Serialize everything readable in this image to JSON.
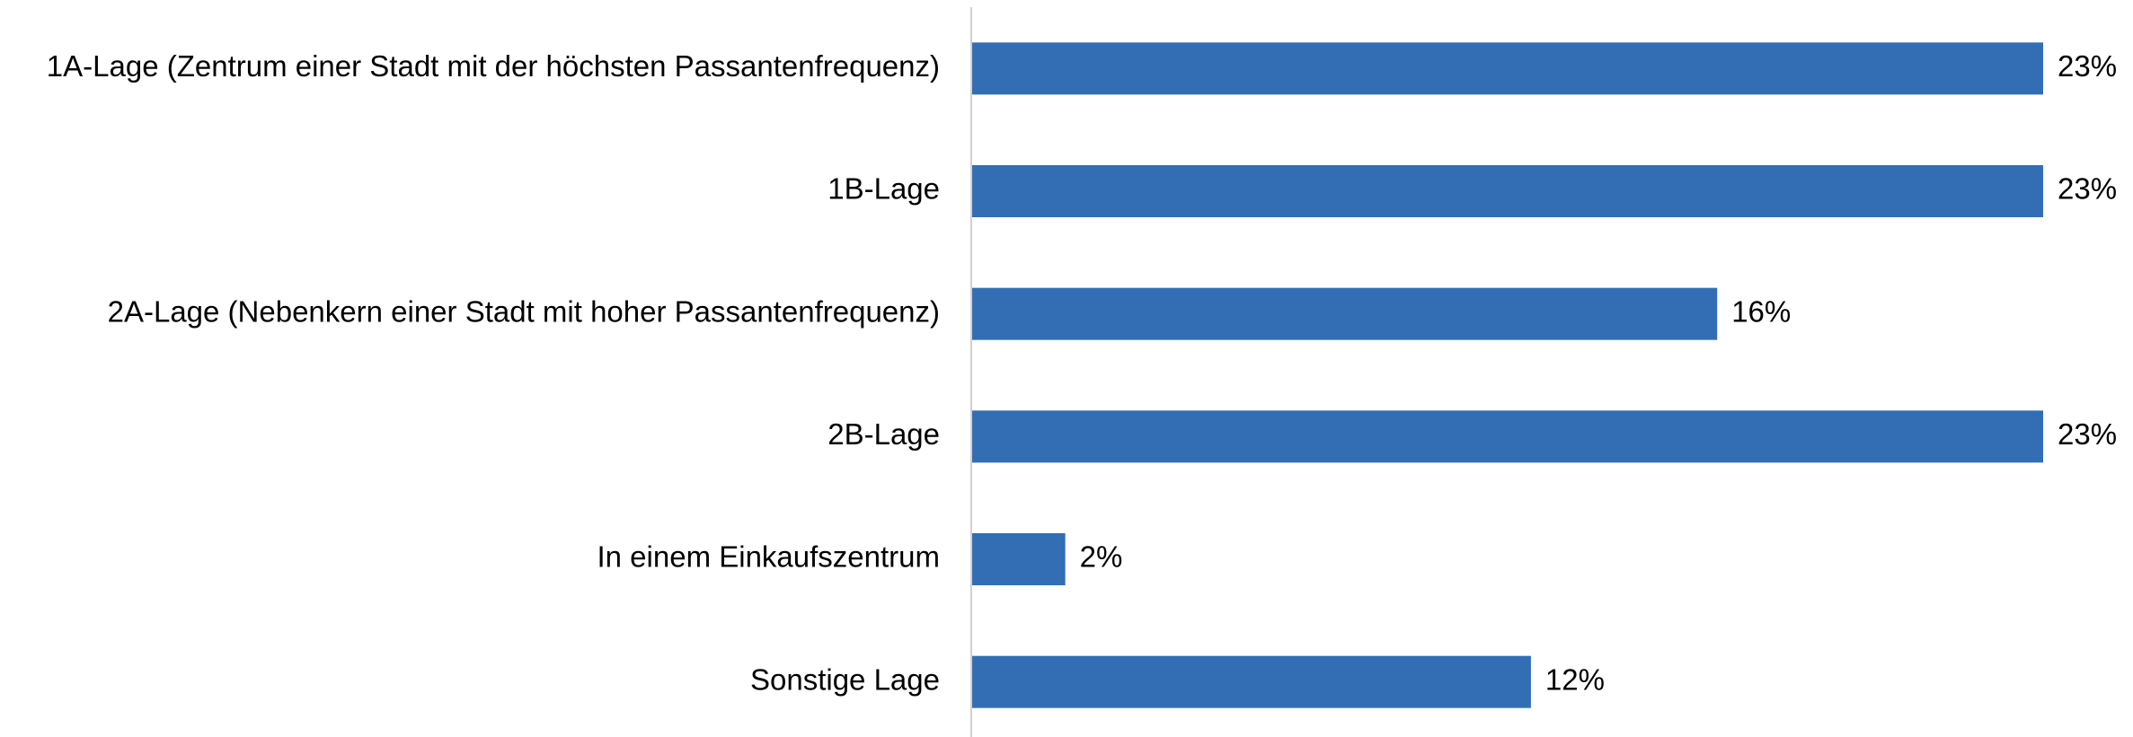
{
  "chart_data": {
    "type": "bar",
    "orientation": "horizontal",
    "categories": [
      "1A-Lage (Zentrum einer Stadt mit der höchsten Passantenfrequenz)",
      "1B-Lage",
      "2A-Lage (Nebenkern einer Stadt mit hoher Passantenfrequenz)",
      "2B-Lage",
      "In einem Einkaufszentrum",
      "Sonstige Lage"
    ],
    "values": [
      23,
      23,
      16,
      23,
      2,
      12
    ],
    "value_labels": [
      "23%",
      "23%",
      "16%",
      "23%",
      "2%",
      "12%"
    ],
    "color": "#336eb4"
  }
}
